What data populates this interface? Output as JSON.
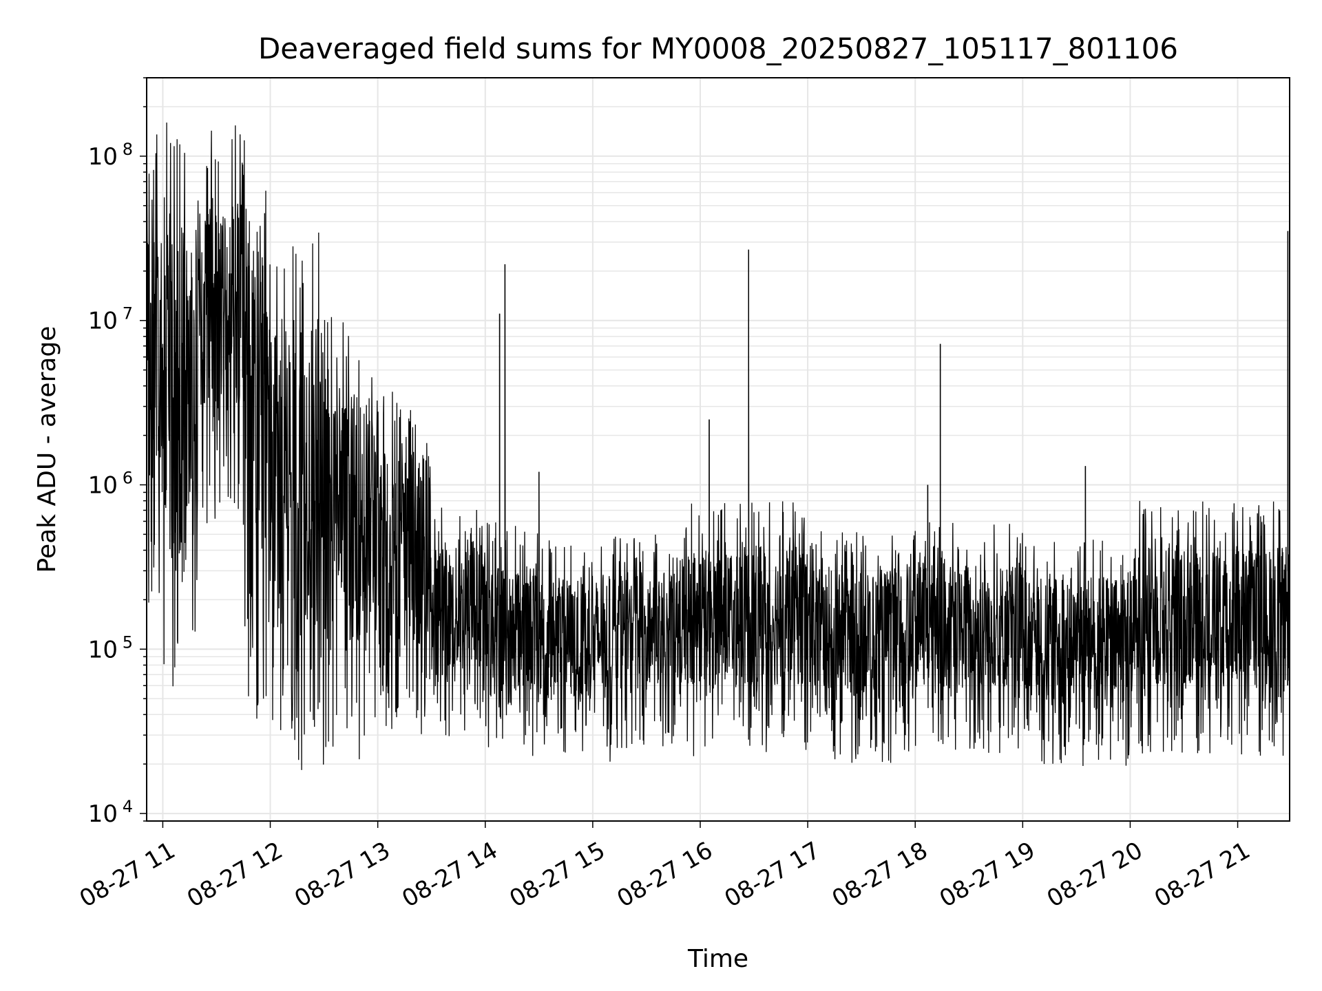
{
  "chart_data": {
    "type": "line",
    "title": "Deaveraged field sums for MY0008_20250827_105117_801106",
    "xlabel": "Time",
    "ylabel": "Peak ADU - average",
    "yscale": "log",
    "ylim": [
      9000,
      300000000
    ],
    "xlim": [
      "2025-08-27 10:51",
      "2025-08-27 21:29"
    ],
    "grid": true,
    "x_ticks": [
      {
        "value": "2025-08-27 11:00",
        "label": "08-27 11"
      },
      {
        "value": "2025-08-27 12:00",
        "label": "08-27 12"
      },
      {
        "value": "2025-08-27 13:00",
        "label": "08-27 13"
      },
      {
        "value": "2025-08-27 14:00",
        "label": "08-27 14"
      },
      {
        "value": "2025-08-27 15:00",
        "label": "08-27 15"
      },
      {
        "value": "2025-08-27 16:00",
        "label": "08-27 16"
      },
      {
        "value": "2025-08-27 17:00",
        "label": "08-27 17"
      },
      {
        "value": "2025-08-27 18:00",
        "label": "08-27 18"
      },
      {
        "value": "2025-08-27 19:00",
        "label": "08-27 19"
      },
      {
        "value": "2025-08-27 20:00",
        "label": "08-27 20"
      },
      {
        "value": "2025-08-27 21:00",
        "label": "08-27 21"
      }
    ],
    "y_ticks": [
      {
        "value": 10000,
        "base": "10",
        "exp": "4"
      },
      {
        "value": 100000,
        "base": "10",
        "exp": "5"
      },
      {
        "value": 1000000,
        "base": "10",
        "exp": "6"
      },
      {
        "value": 10000000,
        "base": "10",
        "exp": "7"
      },
      {
        "value": 100000000,
        "base": "10",
        "exp": "8"
      }
    ],
    "series": [
      {
        "color": "#000000",
        "segments": [
          {
            "start": "2025-08-27 10:51",
            "end": "2025-08-27 11:00",
            "low": 80000,
            "high": 140000000
          },
          {
            "start": "2025-08-27 11:00",
            "end": "2025-08-27 11:20",
            "low": 40000,
            "high": 170000000
          },
          {
            "start": "2025-08-27 11:20",
            "end": "2025-08-27 11:45",
            "low": 500000,
            "high": 160000000
          },
          {
            "start": "2025-08-27 11:45",
            "end": "2025-08-27 12:00",
            "low": 30000,
            "high": 190000000
          },
          {
            "start": "2025-08-27 12:00",
            "end": "2025-08-27 12:30",
            "low": 18000,
            "high": 40000000
          },
          {
            "start": "2025-08-27 12:30",
            "end": "2025-08-27 13:00",
            "low": 20000,
            "high": 11000000
          },
          {
            "start": "2025-08-27 13:00",
            "end": "2025-08-27 13:30",
            "low": 30000,
            "high": 3800000
          },
          {
            "start": "2025-08-27 13:30",
            "end": "2025-08-27 14:00",
            "low": 28000,
            "high": 750000
          },
          {
            "start": "2025-08-27 14:00",
            "end": "2025-08-27 14:30",
            "low": 22000,
            "high": 600000
          },
          {
            "start": "2025-08-27 14:30",
            "end": "2025-08-27 15:10",
            "low": 20000,
            "high": 480000
          },
          {
            "start": "2025-08-27 15:10",
            "end": "2025-08-27 15:50",
            "low": 25000,
            "high": 500000
          },
          {
            "start": "2025-08-27 15:50",
            "end": "2025-08-27 17:00",
            "low": 22000,
            "high": 800000
          },
          {
            "start": "2025-08-27 17:00",
            "end": "2025-08-27 18:00",
            "low": 20000,
            "high": 550000
          },
          {
            "start": "2025-08-27 18:00",
            "end": "2025-08-27 19:00",
            "low": 23000,
            "high": 600000
          },
          {
            "start": "2025-08-27 19:00",
            "end": "2025-08-27 20:00",
            "low": 19000,
            "high": 480000
          },
          {
            "start": "2025-08-27 20:00",
            "end": "2025-08-27 21:29",
            "low": 21000,
            "high": 800000
          }
        ],
        "spikes": [
          {
            "x": "2025-08-27 14:08",
            "y": 11000000
          },
          {
            "x": "2025-08-27 14:11",
            "y": 22000000
          },
          {
            "x": "2025-08-27 14:30",
            "y": 1200000
          },
          {
            "x": "2025-08-27 16:05",
            "y": 2500000
          },
          {
            "x": "2025-08-27 16:27",
            "y": 27000000
          },
          {
            "x": "2025-08-27 18:07",
            "y": 1000000
          },
          {
            "x": "2025-08-27 18:14",
            "y": 7200000
          },
          {
            "x": "2025-08-27 19:35",
            "y": 1300000
          },
          {
            "x": "2025-08-27 21:28",
            "y": 35000000
          }
        ]
      }
    ]
  }
}
